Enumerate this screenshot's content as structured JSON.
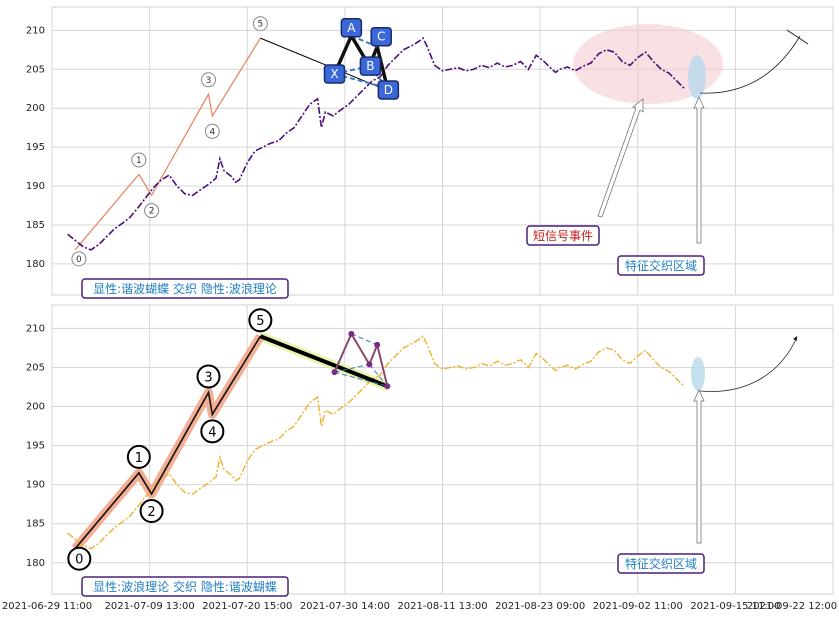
{
  "chart_data": {
    "type": "line",
    "x_ticks": [
      "2021-06-29 11:00",
      "2021-07-09 13:00",
      "2021-07-20 15:00",
      "2021-07-30 14:00",
      "2021-08-11 13:00",
      "2021-08-23 09:00",
      "2021-09-02 11:00",
      "2021-09-15 11:00",
      "2021-09-22 12:00"
    ],
    "y_ticks": [
      "180",
      "185",
      "190",
      "195",
      "200",
      "205",
      "210"
    ],
    "ylim": [
      176,
      213
    ],
    "price_series": [
      [
        0.02,
        183.8
      ],
      [
        0.03,
        183.0
      ],
      [
        0.04,
        182.2
      ],
      [
        0.05,
        181.8
      ],
      [
        0.06,
        182.5
      ],
      [
        0.07,
        183.5
      ],
      [
        0.08,
        184.5
      ],
      [
        0.09,
        185.2
      ],
      [
        0.1,
        186.0
      ],
      [
        0.11,
        187.2
      ],
      [
        0.12,
        188.5
      ],
      [
        0.13,
        189.8
      ],
      [
        0.14,
        190.8
      ],
      [
        0.15,
        191.4
      ],
      [
        0.16,
        190.0
      ],
      [
        0.17,
        189.0
      ],
      [
        0.18,
        188.8
      ],
      [
        0.19,
        189.5
      ],
      [
        0.2,
        190.2
      ],
      [
        0.21,
        191.0
      ],
      [
        0.215,
        193.5
      ],
      [
        0.22,
        192.0
      ],
      [
        0.23,
        191.2
      ],
      [
        0.235,
        190.5
      ],
      [
        0.24,
        190.8
      ],
      [
        0.25,
        193.0
      ],
      [
        0.26,
        194.5
      ],
      [
        0.27,
        195.0
      ],
      [
        0.28,
        195.5
      ],
      [
        0.29,
        195.8
      ],
      [
        0.3,
        196.8
      ],
      [
        0.31,
        197.5
      ],
      [
        0.32,
        199.0
      ],
      [
        0.33,
        200.5
      ],
      [
        0.34,
        201.2
      ],
      [
        0.345,
        197.5
      ],
      [
        0.35,
        199.5
      ],
      [
        0.36,
        199.0
      ],
      [
        0.37,
        199.8
      ],
      [
        0.38,
        200.5
      ],
      [
        0.39,
        201.5
      ],
      [
        0.4,
        202.5
      ],
      [
        0.41,
        203.5
      ],
      [
        0.42,
        204.0
      ],
      [
        0.43,
        205.5
      ],
      [
        0.44,
        206.5
      ],
      [
        0.45,
        207.5
      ],
      [
        0.46,
        208.0
      ],
      [
        0.47,
        208.6
      ],
      [
        0.475,
        209.0
      ],
      [
        0.48,
        208.0
      ],
      [
        0.49,
        205.5
      ],
      [
        0.5,
        204.8
      ],
      [
        0.51,
        205.0
      ],
      [
        0.52,
        205.2
      ],
      [
        0.53,
        204.8
      ],
      [
        0.54,
        205.0
      ],
      [
        0.55,
        205.5
      ],
      [
        0.56,
        205.2
      ],
      [
        0.57,
        205.8
      ],
      [
        0.58,
        205.3
      ],
      [
        0.59,
        205.5
      ],
      [
        0.6,
        206.0
      ],
      [
        0.61,
        205.0
      ],
      [
        0.62,
        206.8
      ],
      [
        0.63,
        206.0
      ],
      [
        0.64,
        205.0
      ],
      [
        0.645,
        204.6
      ],
      [
        0.65,
        205.0
      ],
      [
        0.66,
        205.3
      ],
      [
        0.67,
        204.8
      ],
      [
        0.68,
        205.4
      ],
      [
        0.69,
        205.8
      ],
      [
        0.7,
        207.0
      ],
      [
        0.71,
        207.5
      ],
      [
        0.72,
        207.2
      ],
      [
        0.73,
        206.0
      ],
      [
        0.74,
        205.5
      ],
      [
        0.75,
        206.5
      ],
      [
        0.76,
        207.2
      ],
      [
        0.77,
        206.0
      ],
      [
        0.78,
        205.0
      ],
      [
        0.79,
        204.5
      ],
      [
        0.8,
        203.5
      ],
      [
        0.81,
        202.5
      ]
    ],
    "wave_points": [
      [
        0.0296,
        181.8
      ],
      [
        0.1112,
        191.5
      ],
      [
        0.1275,
        188.8
      ],
      [
        0.2004,
        201.8
      ],
      [
        0.2053,
        199.0
      ],
      [
        0.2668,
        209.0
      ]
    ],
    "wave_labels": [
      "0",
      "1",
      "2",
      "3",
      "4",
      "5"
    ],
    "butterfly_points": [
      [
        0.3617,
        204.4
      ],
      [
        0.3833,
        209.3
      ],
      [
        0.4064,
        205.4
      ],
      [
        0.4164,
        207.9
      ],
      [
        0.4294,
        202.6
      ]
    ],
    "butterfly_labels": [
      "X",
      "A",
      "B",
      "C",
      "D"
    ],
    "projection_end": [
      0.4908,
      209.5
    ],
    "panels": [
      {
        "name": "top",
        "caption": "显性:谐波蝴蝶 交织 隐性:波浪理论",
        "annotations": [
          "短信号事件",
          "特征交织区域"
        ]
      },
      {
        "name": "bottom",
        "caption": "显性:波浪理论 交织 隐性:谐波蝴蝶",
        "annotations": [
          "特征交织区域"
        ]
      }
    ]
  },
  "colors": {
    "top_series": "#4b0f7a",
    "bottom_series": "#f0b030",
    "abcd_box": "#3a68d8",
    "ann_red": "#c02020",
    "ann_blue": "#1f7fc0",
    "ann_border": "#4a1f7a"
  }
}
